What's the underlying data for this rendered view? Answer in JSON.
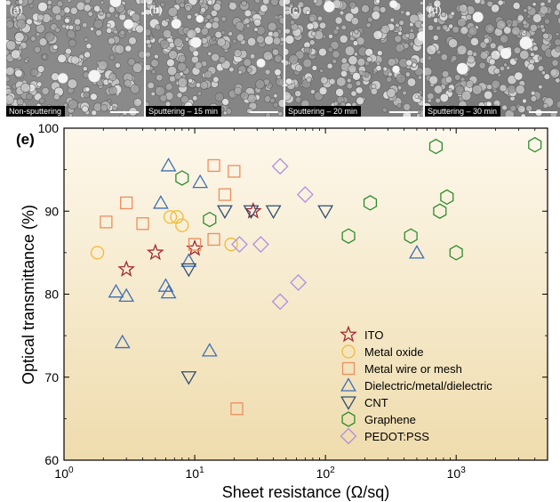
{
  "panels": [
    {
      "letter": "(a)",
      "caption": "Non-sputtering",
      "tone": "#8a8a8a"
    },
    {
      "letter": "(b)",
      "caption": "Sputtering – 15 min",
      "tone": "#858585"
    },
    {
      "letter": "(c)",
      "caption": "Sputtering – 20 min",
      "tone": "#7f7f7f"
    },
    {
      "letter": "(d)",
      "caption": "Sputtering – 30 min",
      "tone": "#7a7a7a"
    }
  ],
  "chart_data": {
    "type": "scatter",
    "panel_label": "(e)",
    "xlabel": "Sheet resistance (Ω/sq)",
    "ylabel": "Optical transmittance (%)",
    "x_scale": "log",
    "xlim": [
      1,
      5000
    ],
    "ylim": [
      60,
      100
    ],
    "x_ticks": [
      {
        "value": 1,
        "base": "10",
        "exp": "0"
      },
      {
        "value": 10,
        "base": "10",
        "exp": "1"
      },
      {
        "value": 100,
        "base": "10",
        "exp": "2"
      },
      {
        "value": 1000,
        "base": "10",
        "exp": "3"
      }
    ],
    "y_ticks": [
      60,
      70,
      80,
      90,
      100
    ],
    "background": {
      "top": "#fdf8ec",
      "bottom": "#efdcad"
    },
    "legend_position": "lower-right",
    "series": [
      {
        "name": "ITO",
        "marker": "star",
        "color": "#a3272e",
        "points": [
          [
            3,
            83
          ],
          [
            5,
            85
          ],
          [
            10,
            85.5
          ],
          [
            28,
            90
          ]
        ]
      },
      {
        "name": "Metal oxide",
        "marker": "circle",
        "color": "#f2b935",
        "points": [
          [
            1.8,
            85
          ],
          [
            6.5,
            89.3
          ],
          [
            7.3,
            89.3
          ],
          [
            8,
            88.3
          ],
          [
            19,
            86
          ]
        ]
      },
      {
        "name": "Metal wire or mesh",
        "marker": "square",
        "color": "#ee8d5e",
        "points": [
          [
            2.1,
            88.7
          ],
          [
            3,
            91
          ],
          [
            4,
            88.5
          ],
          [
            10,
            86
          ],
          [
            14,
            95.5
          ],
          [
            14,
            86.6
          ],
          [
            17,
            92
          ],
          [
            20,
            94.8
          ],
          [
            21,
            66.2
          ]
        ]
      },
      {
        "name": "Dielectric/metal/dielectric",
        "marker": "triangle-up",
        "color": "#3f6fb3",
        "points": [
          [
            2.5,
            80.3
          ],
          [
            2.8,
            74.2
          ],
          [
            3,
            79.8
          ],
          [
            5.5,
            91
          ],
          [
            6,
            81
          ],
          [
            6.3,
            95.5
          ],
          [
            6.3,
            80.2
          ],
          [
            9,
            84
          ],
          [
            11,
            93.5
          ],
          [
            13,
            73.2
          ],
          [
            500,
            85
          ]
        ]
      },
      {
        "name": "CNT",
        "marker": "triangle-down",
        "color": "#2f4f73",
        "points": [
          [
            9,
            83
          ],
          [
            9,
            70
          ],
          [
            17,
            90
          ],
          [
            27,
            90
          ],
          [
            40,
            90
          ],
          [
            100,
            90
          ]
        ]
      },
      {
        "name": "Graphene",
        "marker": "hexagon",
        "color": "#2e8b2e",
        "points": [
          [
            8,
            94
          ],
          [
            13,
            89
          ],
          [
            150,
            87
          ],
          [
            220,
            91
          ],
          [
            450,
            87
          ],
          [
            700,
            97.8
          ],
          [
            750,
            90
          ],
          [
            850,
            91.7
          ],
          [
            1000,
            85
          ],
          [
            4000,
            98
          ]
        ]
      },
      {
        "name": "PEDOT:PSS",
        "marker": "diamond",
        "color": "#b08ee0",
        "points": [
          [
            22,
            86
          ],
          [
            32,
            86
          ],
          [
            45,
            95.4
          ],
          [
            45,
            79.1
          ],
          [
            62,
            81.4
          ],
          [
            70,
            92
          ]
        ]
      }
    ]
  }
}
